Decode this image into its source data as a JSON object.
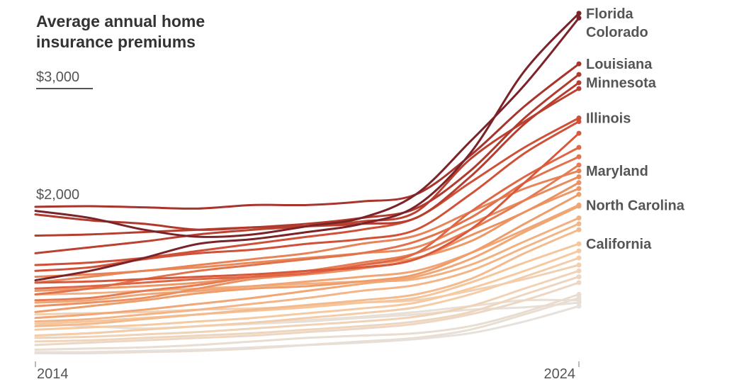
{
  "chart_data": {
    "type": "line",
    "title": "Average annual home insurance premiums",
    "x": [
      2014,
      2015,
      2016,
      2017,
      2018,
      2019,
      2020,
      2021,
      2022,
      2023,
      2024
    ],
    "x_tick_labels": [
      "2014",
      "2024"
    ],
    "y_tick_labels": [
      "$3,000",
      "$2,000"
    ],
    "y_ticks": [
      3000,
      2000
    ],
    "ylim": [
      700,
      3700
    ],
    "grid": false,
    "color_scale": [
      "#e6e1dc",
      "#f6c9a0",
      "#ee9a66",
      "#d9573a",
      "#b23a2e",
      "#7a2329"
    ],
    "series": [
      {
        "name": "Florida",
        "values": [
          1370,
          1450,
          1560,
          1680,
          1720,
          1780,
          1850,
          2000,
          2450,
          3150,
          3640
        ]
      },
      {
        "name": "Colorado",
        "values": [
          1960,
          1900,
          1800,
          1740,
          1760,
          1830,
          1900,
          2100,
          2550,
          3030,
          3600
        ]
      },
      {
        "name": "Louisiana",
        "values": [
          1995,
          2000,
          1990,
          1980,
          2010,
          2010,
          2040,
          2100,
          2430,
          2850,
          3210
        ]
      },
      {
        "values": [
          1930,
          1880,
          1850,
          1800,
          1820,
          1850,
          1900,
          1980,
          2300,
          2750,
          3120
        ]
      },
      {
        "name": "Minnesota",
        "values": [
          1750,
          1760,
          1780,
          1800,
          1820,
          1830,
          1850,
          1900,
          2250,
          2700,
          3050
        ]
      },
      {
        "values": [
          1600,
          1650,
          1700,
          1760,
          1800,
          1830,
          1870,
          1950,
          2400,
          2720,
          3000
        ]
      },
      {
        "name": "Illinois",
        "values": [
          1500,
          1520,
          1560,
          1620,
          1680,
          1740,
          1800,
          1900,
          2200,
          2500,
          2750
        ]
      },
      {
        "values": [
          1450,
          1480,
          1550,
          1600,
          1630,
          1680,
          1720,
          1800,
          2100,
          2450,
          2720
        ]
      },
      {
        "values": [
          1350,
          1360,
          1380,
          1400,
          1420,
          1450,
          1480,
          1550,
          1800,
          2200,
          2620
        ]
      },
      {
        "values": [
          1300,
          1320,
          1350,
          1380,
          1400,
          1430,
          1500,
          1600,
          1950,
          2250,
          2500
        ]
      },
      {
        "values": [
          1250,
          1300,
          1380,
          1450,
          1500,
          1550,
          1600,
          1700,
          1900,
          2200,
          2420
        ]
      },
      {
        "values": [
          1200,
          1220,
          1280,
          1330,
          1400,
          1450,
          1520,
          1600,
          1800,
          2050,
          2350
        ]
      },
      {
        "name": "Maryland",
        "values": [
          1400,
          1420,
          1450,
          1500,
          1550,
          1600,
          1680,
          1750,
          1950,
          2150,
          2300
        ]
      },
      {
        "values": [
          1350,
          1400,
          1450,
          1480,
          1520,
          1560,
          1600,
          1650,
          1850,
          2050,
          2250
        ]
      },
      {
        "values": [
          1150,
          1180,
          1220,
          1300,
          1380,
          1420,
          1470,
          1550,
          1750,
          1950,
          2200
        ]
      },
      {
        "values": [
          1280,
          1300,
          1320,
          1350,
          1400,
          1450,
          1500,
          1560,
          1700,
          1950,
          2150
        ]
      },
      {
        "values": [
          1100,
          1150,
          1200,
          1260,
          1300,
          1320,
          1360,
          1420,
          1600,
          1850,
          2100
        ]
      },
      {
        "name": "North Carolina",
        "values": [
          1180,
          1200,
          1250,
          1280,
          1320,
          1360,
          1400,
          1450,
          1600,
          1800,
          2010
        ]
      },
      {
        "values": [
          1050,
          1080,
          1120,
          1170,
          1220,
          1280,
          1340,
          1400,
          1550,
          1780,
          2000
        ]
      },
      {
        "values": [
          1250,
          1260,
          1280,
          1300,
          1320,
          1340,
          1360,
          1380,
          1500,
          1700,
          1900
        ]
      },
      {
        "values": [
          1020,
          1040,
          1080,
          1120,
          1170,
          1220,
          1280,
          1330,
          1450,
          1650,
          1850
        ]
      },
      {
        "values": [
          980,
          1000,
          1040,
          1080,
          1120,
          1160,
          1200,
          1250,
          1380,
          1600,
          1800
        ]
      },
      {
        "name": "California",
        "values": [
          1000,
          1020,
          1050,
          1080,
          1110,
          1140,
          1180,
          1220,
          1350,
          1520,
          1680
        ]
      },
      {
        "values": [
          950,
          970,
          990,
          1020,
          1050,
          1090,
          1130,
          1180,
          1300,
          1450,
          1620
        ]
      },
      {
        "values": [
          900,
          920,
          950,
          980,
          1010,
          1050,
          1090,
          1140,
          1250,
          1400,
          1560
        ]
      },
      {
        "values": [
          1080,
          1090,
          1100,
          1120,
          1130,
          1150,
          1180,
          1200,
          1280,
          1380,
          1500
        ]
      },
      {
        "values": [
          880,
          890,
          910,
          930,
          960,
          990,
          1020,
          1060,
          1150,
          1300,
          1450
        ]
      },
      {
        "values": [
          850,
          860,
          880,
          900,
          920,
          950,
          980,
          1020,
          1100,
          1250,
          1400
        ]
      },
      {
        "values": [
          820,
          840,
          860,
          880,
          900,
          930,
          960,
          1000,
          1080,
          1200,
          1350
        ]
      },
      {
        "values": [
          1000,
          980,
          960,
          980,
          1000,
          1020,
          1050,
          1080,
          1120,
          1140,
          1180
        ]
      },
      {
        "values": [
          780,
          790,
          800,
          820,
          850,
          880,
          900,
          920,
          980,
          1100,
          1250
        ]
      },
      {
        "values": [
          760,
          760,
          770,
          780,
          800,
          820,
          840,
          870,
          920,
          1020,
          1150
        ]
      },
      {
        "values": [
          900,
          920,
          950,
          980,
          1000,
          1030,
          1060,
          1100,
          1150,
          1200,
          1200
        ]
      },
      {
        "values": [
          750,
          750,
          760,
          770,
          790,
          820,
          850,
          880,
          950,
          1080,
          1220
        ]
      }
    ]
  }
}
